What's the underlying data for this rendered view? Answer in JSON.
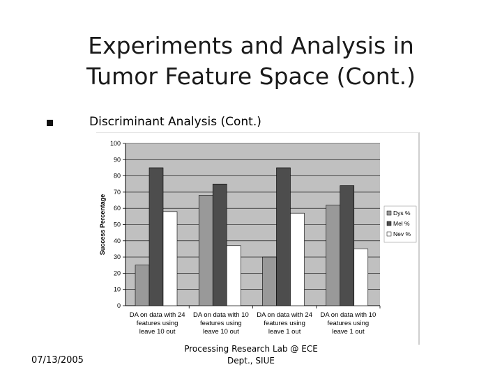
{
  "slide": {
    "title_line1": "Experiments and Analysis in",
    "title_line2": "Tumor Feature Space (Cont.)",
    "bullet": "Discriminant Analysis (Cont.)",
    "footer_date": "07/13/2005",
    "footer_line1": "Processing Research Lab @ ECE",
    "footer_line2": "Dept., SIUE"
  },
  "colors": {
    "plot_area": "#c0c0c0",
    "bullet": "#111111"
  },
  "chart_data": {
    "type": "bar",
    "title": "",
    "xlabel": "",
    "ylabel": "Success Percentage",
    "ylim": [
      0,
      100
    ],
    "yticks": [
      0,
      10,
      20,
      30,
      40,
      50,
      60,
      70,
      80,
      90,
      100
    ],
    "grid": true,
    "legend_position": "right",
    "categories": [
      [
        "DA on data with 24",
        "features using",
        "leave 10 out"
      ],
      [
        "DA on data with 10",
        "features using",
        "leave 10 out"
      ],
      [
        "DA on data with 24",
        "features using",
        "leave 1 out"
      ],
      [
        "DA on data with 10",
        "features using",
        "leave 1 out"
      ]
    ],
    "series": [
      {
        "name": "Dys %",
        "color": "#999999",
        "values": [
          25,
          68,
          30,
          62
        ]
      },
      {
        "name": "Mel %",
        "color": "#4d4d4d",
        "values": [
          85,
          75,
          85,
          74
        ]
      },
      {
        "name": "Nev %",
        "color": "#ffffff",
        "values": [
          58,
          37,
          57,
          35
        ]
      }
    ]
  }
}
